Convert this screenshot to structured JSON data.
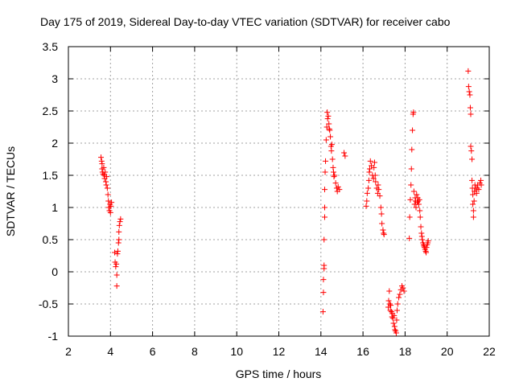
{
  "chart_data": {
    "type": "scatter",
    "title": "Day 175 of 2019, Sidereal Day-to-day VTEC variation (SDTVAR) for receiver cabo",
    "xlabel": "GPS time / hours",
    "ylabel": "SDTVAR / TECUs",
    "xlim": [
      2,
      22
    ],
    "ylim": [
      -1,
      3.5
    ],
    "x_ticks": [
      2,
      4,
      6,
      8,
      10,
      12,
      14,
      16,
      18,
      20,
      22
    ],
    "y_ticks": [
      -1,
      -0.5,
      0,
      0.5,
      1,
      1.5,
      2,
      2.5,
      3,
      3.5
    ],
    "x_tick_labels": [
      "2",
      "4",
      "6",
      "8",
      "10",
      "12",
      "14",
      "16",
      "18",
      "20",
      "22"
    ],
    "y_tick_labels": [
      "-1",
      "-0.5",
      "0",
      "0.5",
      "1",
      "1.5",
      "2",
      "2.5",
      "3",
      "3.5"
    ],
    "grid": true,
    "marker": "+",
    "colors": {
      "series": "#ff0000",
      "grid": "#a0a0a0",
      "axis": "#000000"
    },
    "series": [
      {
        "name": "SDTVAR",
        "points": [
          [
            3.55,
            1.78
          ],
          [
            3.58,
            1.72
          ],
          [
            3.6,
            1.68
          ],
          [
            3.6,
            1.6
          ],
          [
            3.62,
            1.55
          ],
          [
            3.65,
            1.52
          ],
          [
            3.68,
            1.62
          ],
          [
            3.7,
            1.5
          ],
          [
            3.72,
            1.45
          ],
          [
            3.75,
            1.55
          ],
          [
            3.78,
            1.4
          ],
          [
            3.8,
            1.35
          ],
          [
            3.82,
            1.48
          ],
          [
            3.85,
            1.3
          ],
          [
            3.88,
            1.2
          ],
          [
            3.9,
            1.1
          ],
          [
            3.92,
            1.0
          ],
          [
            3.95,
            0.95
          ],
          [
            3.98,
            1.05
          ],
          [
            4.0,
            0.92
          ],
          [
            4.02,
            1.02
          ],
          [
            4.05,
            1.08
          ],
          [
            4.2,
            0.3
          ],
          [
            4.22,
            0.15
          ],
          [
            4.25,
            0.08
          ],
          [
            4.28,
            0.12
          ],
          [
            4.3,
            -0.05
          ],
          [
            4.3,
            -0.22
          ],
          [
            4.33,
            0.28
          ],
          [
            4.35,
            0.32
          ],
          [
            4.38,
            0.45
          ],
          [
            4.4,
            0.5
          ],
          [
            4.4,
            0.62
          ],
          [
            4.42,
            0.72
          ],
          [
            4.45,
            0.78
          ],
          [
            4.48,
            0.82
          ],
          [
            14.1,
            -0.62
          ],
          [
            14.12,
            -0.32
          ],
          [
            14.12,
            -0.12
          ],
          [
            14.15,
            0.05
          ],
          [
            14.15,
            0.1
          ],
          [
            14.15,
            0.5
          ],
          [
            14.18,
            0.85
          ],
          [
            14.18,
            1.0
          ],
          [
            14.18,
            1.28
          ],
          [
            14.2,
            1.55
          ],
          [
            14.22,
            1.72
          ],
          [
            14.25,
            2.05
          ],
          [
            14.28,
            2.25
          ],
          [
            14.3,
            2.48
          ],
          [
            14.32,
            2.38
          ],
          [
            14.35,
            2.42
          ],
          [
            14.38,
            2.3
          ],
          [
            14.4,
            2.22
          ],
          [
            14.42,
            2.2
          ],
          [
            14.45,
            2.1
          ],
          [
            14.48,
            1.95
          ],
          [
            14.5,
            1.88
          ],
          [
            14.52,
            1.98
          ],
          [
            14.55,
            1.75
          ],
          [
            14.58,
            1.62
          ],
          [
            14.6,
            1.55
          ],
          [
            14.62,
            1.48
          ],
          [
            14.65,
            1.5
          ],
          [
            14.7,
            1.38
          ],
          [
            14.75,
            1.3
          ],
          [
            14.78,
            1.25
          ],
          [
            14.82,
            1.32
          ],
          [
            14.88,
            1.28
          ],
          [
            15.1,
            1.85
          ],
          [
            15.15,
            1.8
          ],
          [
            16.15,
            1.02
          ],
          [
            16.18,
            1.1
          ],
          [
            16.2,
            1.22
          ],
          [
            16.25,
            1.3
          ],
          [
            16.28,
            1.42
          ],
          [
            16.3,
            1.55
          ],
          [
            16.32,
            1.6
          ],
          [
            16.35,
            1.72
          ],
          [
            16.4,
            1.65
          ],
          [
            16.45,
            1.5
          ],
          [
            16.5,
            1.45
          ],
          [
            16.52,
            1.62
          ],
          [
            16.55,
            1.7
          ],
          [
            16.58,
            1.5
          ],
          [
            16.6,
            1.4
          ],
          [
            16.65,
            1.3
          ],
          [
            16.7,
            1.22
          ],
          [
            16.72,
            1.35
          ],
          [
            16.75,
            1.28
          ],
          [
            16.8,
            1.18
          ],
          [
            16.85,
            1.0
          ],
          [
            16.88,
            0.9
          ],
          [
            16.9,
            0.75
          ],
          [
            16.95,
            0.65
          ],
          [
            16.98,
            0.6
          ],
          [
            17.0,
            0.58
          ],
          [
            17.2,
            -0.55
          ],
          [
            17.22,
            -0.45
          ],
          [
            17.25,
            -0.3
          ],
          [
            17.28,
            -0.5
          ],
          [
            17.3,
            -0.6
          ],
          [
            17.32,
            -0.52
          ],
          [
            17.35,
            -0.62
          ],
          [
            17.38,
            -0.7
          ],
          [
            17.4,
            -0.65
          ],
          [
            17.42,
            -0.72
          ],
          [
            17.45,
            -0.8
          ],
          [
            17.48,
            -0.68
          ],
          [
            17.5,
            -0.85
          ],
          [
            17.52,
            -0.9
          ],
          [
            17.55,
            -0.92
          ],
          [
            17.58,
            -0.95
          ],
          [
            17.6,
            -0.75
          ],
          [
            17.62,
            -0.6
          ],
          [
            17.65,
            -0.5
          ],
          [
            17.7,
            -0.4
          ],
          [
            17.75,
            -0.35
          ],
          [
            17.8,
            -0.28
          ],
          [
            17.85,
            -0.22
          ],
          [
            17.9,
            -0.25
          ],
          [
            17.95,
            -0.3
          ],
          [
            18.2,
            0.52
          ],
          [
            18.22,
            0.85
          ],
          [
            18.25,
            1.12
          ],
          [
            18.28,
            1.35
          ],
          [
            18.3,
            1.6
          ],
          [
            18.32,
            1.9
          ],
          [
            18.35,
            2.2
          ],
          [
            18.38,
            2.45
          ],
          [
            18.4,
            2.48
          ],
          [
            18.42,
            1.25
          ],
          [
            18.45,
            1.05
          ],
          [
            18.48,
            1.15
          ],
          [
            18.5,
            1.1
          ],
          [
            18.52,
            1.0
          ],
          [
            18.55,
            1.2
          ],
          [
            18.58,
            1.08
          ],
          [
            18.6,
            1.15
          ],
          [
            18.62,
            1.1
          ],
          [
            18.65,
            1.05
          ],
          [
            18.68,
            1.12
          ],
          [
            18.7,
            0.95
          ],
          [
            18.72,
            0.85
          ],
          [
            18.75,
            0.7
          ],
          [
            18.78,
            0.6
          ],
          [
            18.8,
            0.55
          ],
          [
            18.82,
            0.5
          ],
          [
            18.85,
            0.45
          ],
          [
            18.88,
            0.42
          ],
          [
            18.9,
            0.4
          ],
          [
            18.92,
            0.38
          ],
          [
            18.95,
            0.35
          ],
          [
            18.98,
            0.32
          ],
          [
            19.0,
            0.3
          ],
          [
            19.02,
            0.38
          ],
          [
            19.05,
            0.42
          ],
          [
            19.08,
            0.45
          ],
          [
            19.1,
            0.48
          ],
          [
            21.0,
            3.12
          ],
          [
            21.02,
            2.88
          ],
          [
            21.05,
            2.8
          ],
          [
            21.08,
            2.75
          ],
          [
            21.1,
            2.55
          ],
          [
            21.12,
            2.45
          ],
          [
            21.12,
            1.95
          ],
          [
            21.15,
            1.88
          ],
          [
            21.18,
            1.75
          ],
          [
            21.18,
            1.42
          ],
          [
            21.2,
            1.3
          ],
          [
            21.22,
            1.2
          ],
          [
            21.22,
            1.05
          ],
          [
            21.25,
            0.95
          ],
          [
            21.25,
            0.85
          ],
          [
            21.28,
            1.1
          ],
          [
            21.3,
            1.25
          ],
          [
            21.32,
            1.35
          ],
          [
            21.35,
            1.3
          ],
          [
            21.4,
            1.22
          ],
          [
            21.42,
            1.3
          ],
          [
            21.45,
            1.35
          ],
          [
            21.5,
            1.28
          ],
          [
            21.55,
            1.38
          ],
          [
            21.6,
            1.42
          ],
          [
            21.62,
            1.35
          ]
        ]
      }
    ]
  }
}
